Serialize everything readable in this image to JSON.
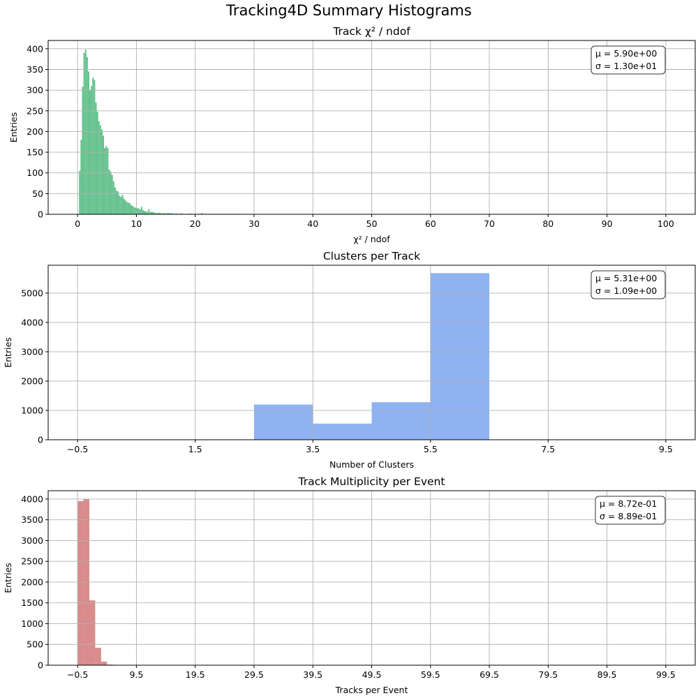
{
  "figure": {
    "suptitle": "Tracking4D Summary Histograms"
  },
  "chart_data": [
    {
      "type": "bar",
      "title": "Track χ² / ndof",
      "xlabel": "χ² / ndof",
      "ylabel": "Entries",
      "color": "#66c28e",
      "grid": true,
      "xlim": [
        -5,
        105
      ],
      "ylim": [
        0,
        420
      ],
      "xticks": [
        0,
        10,
        20,
        30,
        40,
        50,
        60,
        70,
        80,
        90,
        100
      ],
      "xtick_labels": [
        "0",
        "10",
        "20",
        "30",
        "40",
        "50",
        "60",
        "70",
        "80",
        "90",
        "100"
      ],
      "yticks": [
        0,
        50,
        100,
        150,
        200,
        250,
        300,
        350,
        400
      ],
      "ytick_labels": [
        "0",
        "50",
        "100",
        "150",
        "200",
        "250",
        "300",
        "350",
        "400"
      ],
      "stats": {
        "mean": "μ = 5.90e+00",
        "sigma": "σ = 1.30e+01"
      },
      "bin_edges_start": 0,
      "bin_width": 0.25,
      "values": [
        0,
        105,
        180,
        308,
        390,
        398,
        380,
        345,
        300,
        310,
        330,
        325,
        270,
        248,
        225,
        215,
        205,
        190,
        160,
        165,
        160,
        108,
        103,
        95,
        80,
        65,
        57,
        55,
        45,
        42,
        47,
        38,
        34,
        30,
        28,
        27,
        22,
        20,
        17,
        16,
        15,
        14,
        12,
        18,
        10,
        8,
        7,
        6,
        12,
        5,
        6,
        5,
        4,
        3,
        3,
        4,
        3,
        2,
        3,
        2,
        2,
        4,
        2,
        3,
        2,
        1,
        2,
        2,
        1,
        1,
        2,
        1,
        1,
        1,
        1,
        1,
        2,
        1,
        1,
        1,
        1,
        1,
        1,
        1,
        3,
        1,
        1,
        1,
        1,
        1,
        1,
        1,
        1,
        1,
        1,
        1,
        1,
        1,
        1,
        1,
        1,
        1,
        1,
        1,
        1,
        1,
        1,
        1,
        1,
        1,
        1,
        1,
        1,
        1,
        1
      ]
    },
    {
      "type": "bar",
      "title": "Clusters per Track",
      "xlabel": "Number of Clusters",
      "ylabel": "Entries",
      "color": "#8fb2f0",
      "grid": true,
      "xlim": [
        -1,
        10
      ],
      "ylim": [
        0,
        5950
      ],
      "xticks": [
        -0.5,
        1.5,
        3.5,
        5.5,
        7.5,
        9.5
      ],
      "xtick_labels": [
        "−0.5",
        "1.5",
        "3.5",
        "5.5",
        "7.5",
        "9.5"
      ],
      "yticks": [
        0,
        1000,
        2000,
        3000,
        4000,
        5000
      ],
      "ytick_labels": [
        "0",
        "1000",
        "2000",
        "3000",
        "4000",
        "5000"
      ],
      "stats": {
        "mean": "μ = 5.31e+00",
        "sigma": "σ = 1.09e+00"
      },
      "bin_edges_start": -0.5,
      "bin_width": 1,
      "values": [
        0,
        0,
        0,
        1200,
        550,
        1280,
        5680,
        0,
        0,
        0
      ]
    },
    {
      "type": "bar",
      "title": "Track Multiplicity per Event",
      "xlabel": "Tracks per Event",
      "ylabel": "Entries",
      "color": "#d98c8c",
      "grid": true,
      "xlim": [
        -5.5,
        104.5
      ],
      "ylim": [
        0,
        4200
      ],
      "xticks": [
        -0.5,
        9.5,
        19.5,
        29.5,
        39.5,
        49.5,
        59.5,
        69.5,
        79.5,
        89.5,
        99.5
      ],
      "xtick_labels": [
        "−0.5",
        "9.5",
        "19.5",
        "29.5",
        "39.5",
        "49.5",
        "59.5",
        "69.5",
        "79.5",
        "89.5",
        "99.5"
      ],
      "yticks": [
        0,
        500,
        1000,
        1500,
        2000,
        2500,
        3000,
        3500,
        4000
      ],
      "ytick_labels": [
        "0",
        "500",
        "1000",
        "1500",
        "2000",
        "2500",
        "3000",
        "3500",
        "4000"
      ],
      "stats": {
        "mean": "μ = 8.72e-01",
        "sigma": "σ = 8.89e-01"
      },
      "bin_edges_start": -0.5,
      "bin_width": 1,
      "values": [
        3950,
        4000,
        1560,
        420,
        85,
        15
      ]
    }
  ]
}
